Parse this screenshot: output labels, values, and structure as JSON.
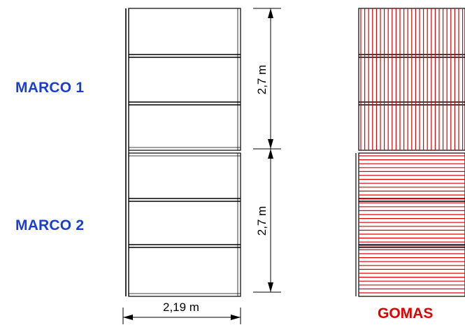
{
  "labels": {
    "marco1": "MARCO 1",
    "marco2": "MARCO 2",
    "gomas": "GOMAS"
  },
  "dimensions": {
    "height_top": "2,7 m",
    "height_bottom": "2,7 m",
    "width": "2,19 m"
  },
  "colors": {
    "label_blue": "#1a3fd0",
    "gomas_red": "#e00000",
    "line": "#000000"
  }
}
